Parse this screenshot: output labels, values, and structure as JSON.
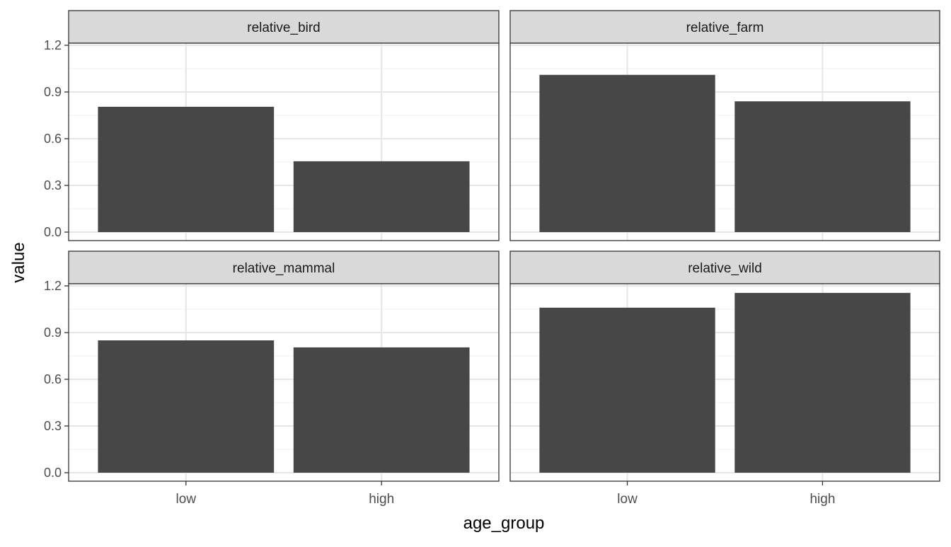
{
  "chart_data": {
    "type": "bar",
    "facet_layout": "2x2 grid",
    "xlabel": "age_group",
    "ylabel": "value",
    "categories": [
      "low",
      "high"
    ],
    "ylim": [
      0,
      1.2
    ],
    "yticks": [
      "0.0",
      "0.3",
      "0.6",
      "0.9",
      "1.2"
    ],
    "grid": true,
    "bar_color": "#474747",
    "strip_fill": "#d9d9d9",
    "panels": [
      {
        "label": "relative_bird",
        "values": [
          0.805,
          0.455
        ]
      },
      {
        "label": "relative_farm",
        "values": [
          1.01,
          0.84
        ]
      },
      {
        "label": "relative_mammal",
        "values": [
          0.85,
          0.805
        ]
      },
      {
        "label": "relative_wild",
        "values": [
          1.06,
          1.155
        ]
      }
    ]
  }
}
